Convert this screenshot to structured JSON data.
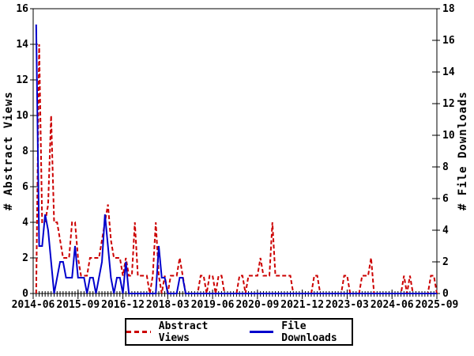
{
  "chart_data": {
    "type": "line",
    "title": "",
    "months": 136,
    "x_start_label": "2014-06",
    "x_end_label": "2025-09",
    "x_tick_labels": [
      "2014-06",
      "2015-09",
      "2016-12",
      "2018-03",
      "2019-06",
      "2020-09",
      "2021-12",
      "2023-03",
      "2024-06",
      "2025-09"
    ],
    "x_tick_month_positions": [
      0,
      15,
      30,
      45,
      60,
      75,
      90,
      105,
      120,
      135
    ],
    "y_left": {
      "title": "# Abstract Views",
      "min": 0,
      "max": 16,
      "step": 2
    },
    "y_right": {
      "title": "# File Downloads",
      "min": 0,
      "max": 18,
      "step": 2
    },
    "grid": false,
    "legend_position": "bottom-center",
    "series": [
      {
        "name": "Abstract Views",
        "axis": "left",
        "color": "#cc0000",
        "style": "dashed",
        "values": [
          null,
          0,
          14,
          4,
          4,
          5,
          10,
          4,
          4,
          3,
          2,
          2,
          2,
          4,
          4,
          2,
          1,
          1,
          1,
          2,
          2,
          2,
          2,
          3,
          4,
          5,
          3,
          2,
          2,
          2,
          1,
          2,
          1,
          1,
          4,
          1,
          1,
          1,
          1,
          0,
          1,
          4,
          1,
          0,
          1,
          0,
          1,
          1,
          1,
          2,
          1,
          0,
          0,
          0,
          0,
          0,
          1,
          1,
          0,
          1,
          1,
          0,
          1,
          1,
          0,
          0,
          0,
          0,
          0,
          1,
          1,
          0,
          1,
          1,
          1,
          1,
          2,
          1,
          1,
          1,
          4,
          1,
          1,
          1,
          1,
          1,
          1,
          0,
          0,
          0,
          0,
          0,
          0,
          0,
          1,
          1,
          0,
          0,
          0,
          0,
          0,
          0,
          0,
          0,
          1,
          1,
          0,
          0,
          0,
          0,
          1,
          1,
          1,
          2,
          0,
          0,
          0,
          0,
          0,
          0,
          0,
          0,
          0,
          0,
          1,
          0,
          1,
          0,
          0,
          0,
          0,
          0,
          0,
          1,
          1,
          0
        ]
      },
      {
        "name": "File Downloads",
        "axis": "right",
        "color": "#0000cc",
        "style": "solid",
        "values": [
          null,
          17,
          3,
          3,
          5,
          4,
          2,
          0,
          1,
          2,
          2,
          1,
          1,
          1,
          3,
          1,
          1,
          1,
          0,
          1,
          1,
          0,
          1,
          2,
          5,
          3,
          1,
          0,
          1,
          1,
          0,
          2,
          0,
          0,
          0,
          0,
          0,
          0,
          0,
          0,
          0,
          0,
          3,
          1,
          1,
          0,
          0,
          0,
          0,
          1,
          1,
          0,
          0,
          0,
          0,
          0,
          0,
          0,
          0,
          0,
          0,
          0,
          0,
          0,
          0,
          0,
          0,
          0,
          0,
          0,
          0,
          0,
          0,
          0,
          0,
          0,
          0,
          0,
          0,
          0,
          0,
          0,
          0,
          0,
          0,
          0,
          0,
          0,
          0,
          0,
          0,
          0,
          0,
          0,
          0,
          0,
          0,
          0,
          0,
          0,
          0,
          0,
          0,
          0,
          0,
          0,
          0,
          0,
          0,
          0,
          0,
          0,
          0,
          0,
          0,
          0,
          0,
          0,
          0,
          0,
          0,
          0,
          0,
          0,
          0,
          0,
          0,
          0,
          0,
          0,
          0,
          0,
          0,
          0,
          0,
          0
        ]
      }
    ]
  }
}
